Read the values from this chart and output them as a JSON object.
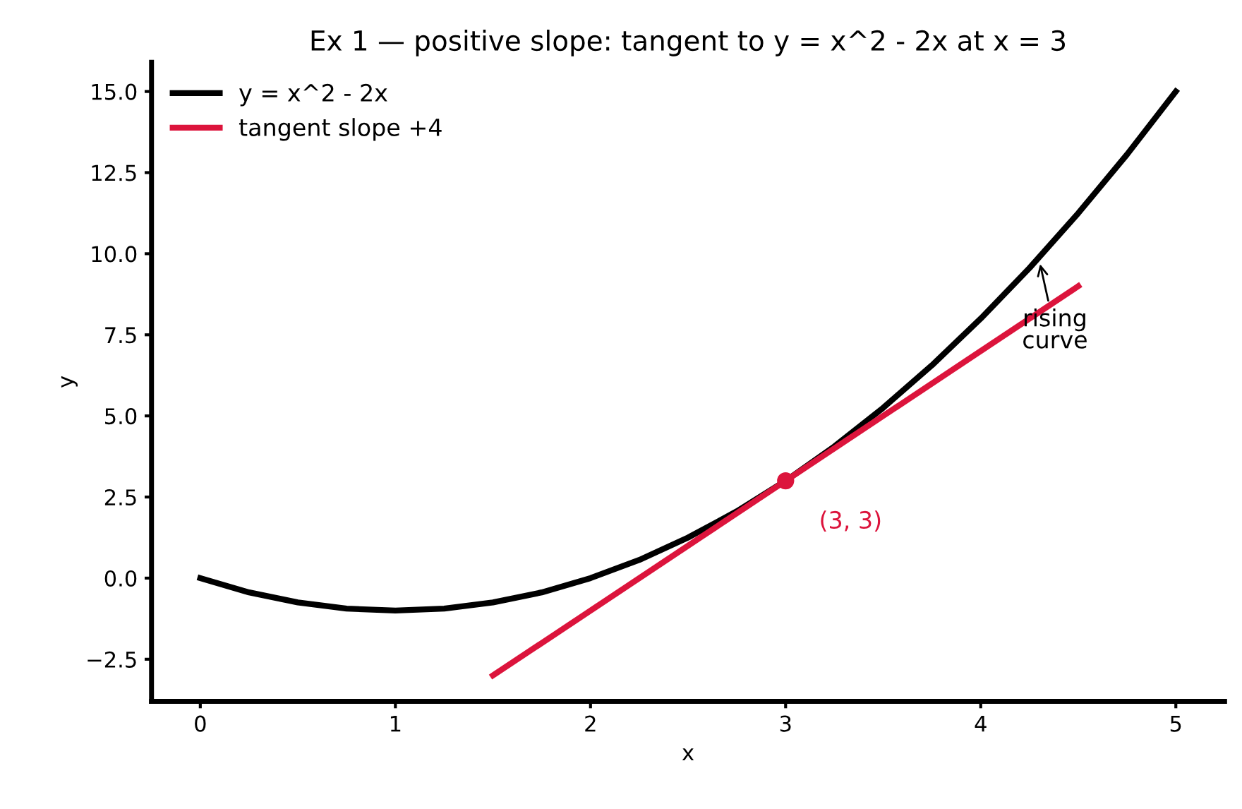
{
  "chart_data": {
    "type": "line",
    "title": "Ex 1 — positive slope: tangent to y = x^2 - 2x at x = 3",
    "xlabel": "x",
    "ylabel": "y",
    "series": [
      {
        "name": "y = x^2 - 2x",
        "color": "#000000",
        "x": [
          0,
          0.25,
          0.5,
          0.75,
          1,
          1.25,
          1.5,
          1.75,
          2,
          2.25,
          2.5,
          2.75,
          3,
          3.25,
          3.5,
          3.75,
          4,
          4.25,
          4.5,
          4.75,
          5
        ],
        "values": [
          0,
          -0.44,
          -0.75,
          -0.94,
          -1,
          -0.94,
          -0.75,
          -0.44,
          0,
          0.56,
          1.25,
          2.06,
          3,
          4.06,
          5.25,
          6.56,
          8,
          9.56,
          11.25,
          13.06,
          15
        ]
      },
      {
        "name": "tangent slope +4",
        "color": "#dc143c",
        "x": [
          1.5,
          4.5
        ],
        "values": [
          -3,
          9
        ]
      },
      {
        "type": "scatter",
        "color": "#dc143c",
        "marker": "circle",
        "x": [
          3
        ],
        "values": [
          3
        ]
      }
    ],
    "annotations": [
      {
        "text": "(3, 3)",
        "x": 3,
        "y": 3
      },
      {
        "text": "rising\ncurve",
        "x": 4.3,
        "y": 9.8
      }
    ],
    "xlim": [
      -0.25,
      5.25
    ],
    "ylim": [
      -3.8,
      15.9
    ],
    "xticks": [
      0,
      1,
      2,
      3,
      4,
      5
    ],
    "yticks": [
      {
        "value": -2.5,
        "label": "−2.5"
      },
      {
        "value": 0,
        "label": "0.0"
      },
      2.5,
      {
        "value": 5,
        "label": "5.0"
      },
      7.5,
      {
        "value": 10,
        "label": "10.0"
      },
      12.5,
      {
        "value": 15,
        "label": "15.0"
      }
    ],
    "grid": false,
    "legend": "top left",
    "marker": "none",
    "line_style": "solid"
  }
}
